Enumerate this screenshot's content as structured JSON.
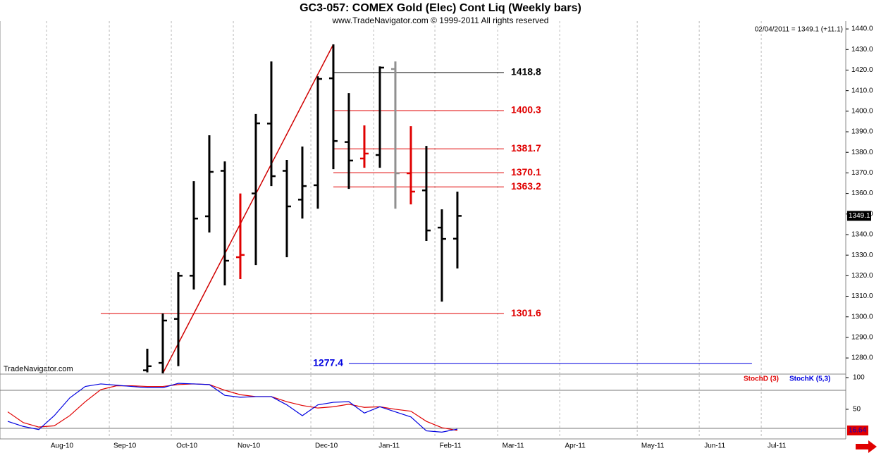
{
  "chart_data": [
    {
      "type": "ohlc",
      "title": "GC3-057:  COMEX Gold (Elec) Cont Liq  (Weekly bars)",
      "subtitle": "www.TradeNavigator.com © 1999-2011 All rights reserved",
      "info": "02/04/2011 = 1349.1 (+11.1)",
      "watermark": "TradeNavigator.com",
      "x": [
        0,
        1,
        2,
        3,
        4,
        5,
        6,
        7,
        8,
        9,
        10,
        11,
        12,
        13,
        14,
        15,
        16,
        17,
        18,
        19,
        20
      ],
      "open": [
        1274,
        1277.6,
        1299,
        1320,
        1348.9,
        1371,
        1329,
        1360,
        1394,
        1371,
        1357,
        1364,
        1416,
        1385,
        1377,
        1378.7,
        1420.5,
        1369.8,
        1361.5,
        1343.4,
        1338
      ],
      "high": [
        1284.5,
        1301.6,
        1321.8,
        1366,
        1388.3,
        1375.6,
        1360,
        1398.6,
        1424.2,
        1376.3,
        1382.8,
        1417,
        1432.5,
        1408.8,
        1393.1,
        1421.8,
        1424.2,
        1392.7,
        1383.1,
        1352.3,
        1360.9
      ],
      "low": [
        1273,
        1272.5,
        1276,
        1313.3,
        1341,
        1315.3,
        1318.4,
        1325.2,
        1363.6,
        1329,
        1347.8,
        1352.6,
        1371.8,
        1362.2,
        1372.5,
        1372.5,
        1352.6,
        1354.7,
        1336.9,
        1307.4,
        1323.5
      ],
      "close": [
        1276,
        1298.2,
        1320,
        1347.8,
        1370.5,
        1327.3,
        1330.1,
        1394.1,
        1368.4,
        1353.7,
        1363.6,
        1415.7,
        1385.5,
        1376,
        1379.4,
        1421.2,
        1369.8,
        1360.9,
        1342,
        1337.9,
        1349.1
      ],
      "colors": [
        "#000000",
        "#000000",
        "#000000",
        "#000000",
        "#000000",
        "#000000",
        "#e00000",
        "#000000",
        "#000000",
        "#000000",
        "#000000",
        "#000000",
        "#000000",
        "#000000",
        "#e00000",
        "#000000",
        "#909090",
        "#e00000",
        "#000000",
        "#000000",
        "#000000"
      ],
      "xlim": [
        -9.5,
        45.05
      ],
      "ylim": [
        1272.5,
        1443.8
      ],
      "yticks": [
        {
          "value": 1280,
          "label": "1280.0"
        },
        {
          "value": 1290,
          "label": "1290.0"
        },
        {
          "value": 1300,
          "label": "1300.0"
        },
        {
          "value": 1310,
          "label": "1310.0"
        },
        {
          "value": 1320,
          "label": "1320.0"
        },
        {
          "value": 1330,
          "label": "1330.0"
        },
        {
          "value": 1340,
          "label": "1340.0"
        },
        {
          "value": 1350,
          "label": "1350.0"
        },
        {
          "value": 1360,
          "label": "1360.0"
        },
        {
          "value": 1370,
          "label": "1370.0"
        },
        {
          "value": 1380,
          "label": "1380.0"
        },
        {
          "value": 1390,
          "label": "1390.0"
        },
        {
          "value": 1400,
          "label": "1400.0"
        },
        {
          "value": 1410,
          "label": "1410.0"
        },
        {
          "value": 1420,
          "label": "1420.0"
        },
        {
          "value": 1430,
          "label": "1430.0"
        },
        {
          "value": 1440,
          "label": "1440.0"
        }
      ],
      "xticks": [
        -6.5,
        -2.45,
        1.55,
        5.55,
        10.55,
        14.6,
        18.55,
        22.6,
        26.6,
        31.6,
        35.6,
        39.6
      ],
      "levels": [
        {
          "value": 1418.8,
          "color": "#000000",
          "xrange": [
            12,
            23
          ]
        },
        {
          "value": 1400.3,
          "color": "#e00000",
          "xrange": [
            12,
            23
          ]
        },
        {
          "value": 1381.7,
          "color": "#e00000",
          "xrange": [
            12,
            23
          ]
        },
        {
          "value": 1370.1,
          "color": "#e00000",
          "xrange": [
            12,
            23
          ]
        },
        {
          "value": 1363.2,
          "color": "#e00000",
          "xrange": [
            12,
            23
          ]
        },
        {
          "value": 1301.6,
          "color": "#e00000",
          "xrange": [
            -3,
            23
          ]
        },
        {
          "value": 1277.4,
          "color": "#0000e0",
          "xrange": [
            13,
            39
          ]
        }
      ],
      "trendline": {
        "x": [
          1,
          12
        ],
        "y": [
          1272.5,
          1432.5
        ],
        "color": "#d00000"
      },
      "grid": true
    },
    {
      "type": "line",
      "x": [
        -9,
        -8,
        -7,
        -6,
        -5,
        -4,
        -3,
        -2,
        -1,
        0,
        1,
        2,
        3,
        4,
        5,
        6,
        7,
        8,
        9,
        10,
        11,
        12,
        13,
        14,
        15,
        16,
        17,
        18,
        19,
        20
      ],
      "series": [
        {
          "name": "StochD (3)",
          "color": "#e00000",
          "values": [
            46,
            29,
            22,
            24,
            40,
            62,
            81,
            87,
            87,
            86,
            86,
            89,
            90,
            89,
            80,
            73,
            70,
            70,
            62,
            56,
            52,
            54,
            58,
            53,
            54,
            50,
            47,
            31,
            21,
            16.64
          ]
        },
        {
          "name": "StochK (5,3)",
          "color": "#0000e0",
          "values": [
            31,
            23,
            18,
            40,
            68,
            86,
            90,
            88,
            86,
            84,
            84,
            91,
            90,
            89,
            72,
            69,
            70,
            70,
            57,
            40,
            57,
            61,
            62,
            44,
            54,
            46,
            38,
            16,
            14,
            18.7
          ]
        }
      ],
      "value_label": "16.64",
      "xlim": [
        -9.5,
        45.05
      ],
      "ylim": [
        4.4,
        104.4
      ],
      "yticks": [
        50,
        100
      ],
      "bands": [
        20,
        80
      ],
      "xticks": [
        {
          "value": -6.5,
          "label": "Aug-10"
        },
        {
          "value": -2.45,
          "label": "Sep-10"
        },
        {
          "value": 1.55,
          "label": "Oct-10"
        },
        {
          "value": 5.55,
          "label": "Nov-10"
        },
        {
          "value": 10.55,
          "label": "Dec-10"
        },
        {
          "value": 14.6,
          "label": "Jan-11"
        },
        {
          "value": 18.55,
          "label": "Feb-11"
        },
        {
          "value": 22.6,
          "label": "Mar-11"
        },
        {
          "value": 26.6,
          "label": "Apr-11"
        },
        {
          "value": 31.6,
          "label": "May-11"
        },
        {
          "value": 35.6,
          "label": "Jun-11"
        },
        {
          "value": 39.6,
          "label": "Jul-11"
        }
      ],
      "grid": true
    }
  ]
}
